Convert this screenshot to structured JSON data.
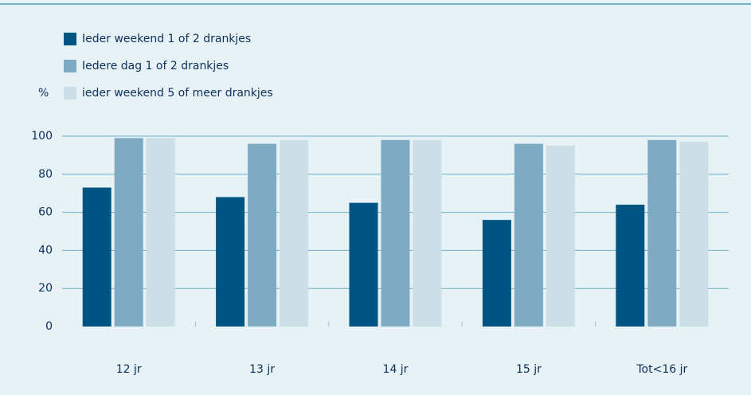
{
  "chart_data": {
    "type": "bar",
    "y_label": "%",
    "categories": [
      "12 jr",
      "13 jr",
      "14 jr",
      "15 jr",
      "Tot<16 jr"
    ],
    "series": [
      {
        "name": "Ieder weekend 1 of 2 drankjes",
        "color": "#005583",
        "values": [
          73,
          68,
          65,
          56,
          64
        ]
      },
      {
        "name": "Iedere dag 1 of 2 drankjes",
        "color": "#7eaac2",
        "values": [
          99,
          96,
          98,
          96,
          98
        ]
      },
      {
        "name": "ieder weekend 5 of meer drankjes",
        "color": "#ccdfe7",
        "values": [
          99,
          98,
          98,
          95,
          97
        ]
      }
    ],
    "ylim": [
      0,
      100
    ],
    "yticks": [
      0,
      20,
      40,
      60,
      80,
      100
    ],
    "grid": true
  }
}
